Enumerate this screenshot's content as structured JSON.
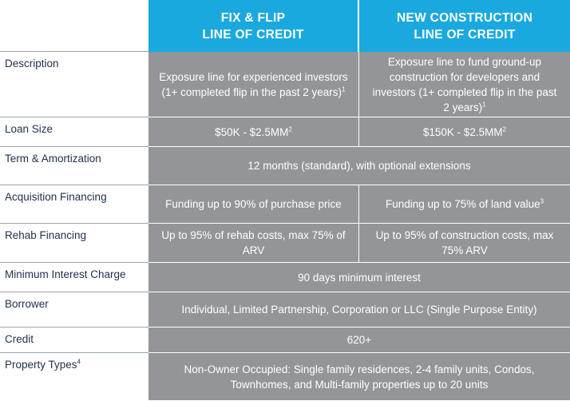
{
  "columns": {
    "fix_flip": {
      "line1": "FIX & FLIP",
      "line2": "LINE OF CREDIT"
    },
    "new_construction": {
      "line1": "NEW CONSTRUCTION",
      "line2": "LINE OF CREDIT"
    }
  },
  "rows": {
    "description": {
      "label": "Description",
      "fix_flip": "Exposure line for experienced investors (1+ completed flip in the past 2 years)",
      "fix_flip_note": "1",
      "new_construction": "Exposure line to fund ground-up construction for developers and investors (1+ completed flip in the past 2 years)",
      "new_construction_note": "1"
    },
    "loan_size": {
      "label": "Loan Size",
      "fix_flip": "$50K - $2.5MM",
      "fix_flip_note": "2",
      "new_construction": "$150K - $2.5MM",
      "new_construction_note": "2"
    },
    "term": {
      "label": "Term & Amortization",
      "both": "12 months (standard), with optional extensions"
    },
    "acquisition": {
      "label": "Acquisition Financing",
      "fix_flip": "Funding up to 90% of purchase price",
      "new_construction": "Funding up to 75% of land value",
      "new_construction_note": "3"
    },
    "rehab": {
      "label": "Rehab Financing",
      "fix_flip": "Up to 95% of rehab costs, max 75% of ARV",
      "new_construction": "Up to 95% of construction costs, max 75% ARV"
    },
    "min_interest": {
      "label": "Minimum Interest Charge",
      "both": "90 days minimum interest"
    },
    "borrower": {
      "label": "Borrower",
      "both": "Individual, Limited Partnership, Corporation or LLC (Single Purpose Entity)"
    },
    "credit": {
      "label": "Credit",
      "both": "620+"
    },
    "property_types": {
      "label": "Property Types",
      "label_note": "4",
      "both": "Non-Owner Occupied: Single family residences, 2-4 family units, Condos, Townhomes, and Multi-family properties up to 20 units"
    }
  },
  "colors": {
    "header_blue": "#1aa9df",
    "cell_gray": "#939598",
    "label_navy": "#1f2f4d"
  }
}
